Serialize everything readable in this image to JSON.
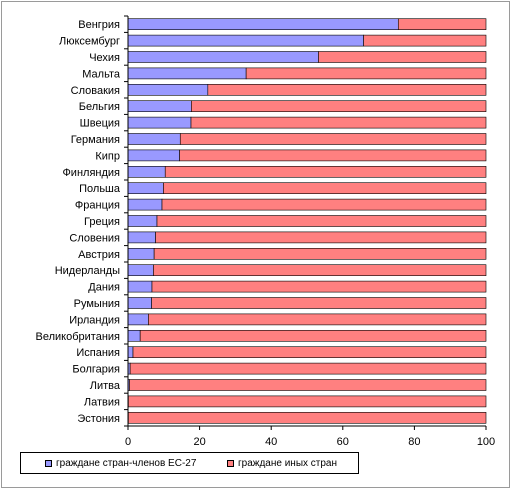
{
  "chart_data": {
    "type": "bar",
    "orientation": "horizontal",
    "stacked": true,
    "categories": [
      "Венгрия",
      "Люксембург",
      "Чехия",
      "Мальта",
      "Словакия",
      "Бельгия",
      "Швеция",
      "Германия",
      "Кипр",
      "Финляндия",
      "Польша",
      "Франция",
      "Греция",
      "Словения",
      "Австрия",
      "Нидерланды",
      "Дания",
      "Румыния",
      "Ирландия",
      "Великобритания",
      "Испания",
      "Болгария",
      "Литва",
      "Латвия",
      "Эстония"
    ],
    "series": [
      {
        "name": "граждане стран-членов ЕС-27",
        "color": "#9999ff",
        "values": [
          75.5,
          65.8,
          53.2,
          33.0,
          22.3,
          17.7,
          17.6,
          14.6,
          14.4,
          10.4,
          9.9,
          9.5,
          8.1,
          7.7,
          7.3,
          7.1,
          6.7,
          6.6,
          5.7,
          3.4,
          1.4,
          0.6,
          0.4,
          0.1,
          0.1
        ]
      },
      {
        "name": "граждане иных стран",
        "color": "#ff8080",
        "values": [
          24.5,
          34.2,
          46.8,
          67.0,
          77.7,
          82.3,
          82.4,
          85.4,
          85.6,
          89.6,
          90.1,
          90.5,
          91.9,
          92.3,
          92.7,
          92.9,
          93.3,
          93.4,
          94.3,
          96.6,
          98.6,
          99.4,
          99.6,
          99.9,
          99.9
        ]
      }
    ],
    "xlim": [
      0,
      100
    ],
    "xticks": [
      "0",
      "20",
      "40",
      "60",
      "80",
      "100"
    ],
    "grid": false,
    "legend_position": "bottom-left"
  }
}
